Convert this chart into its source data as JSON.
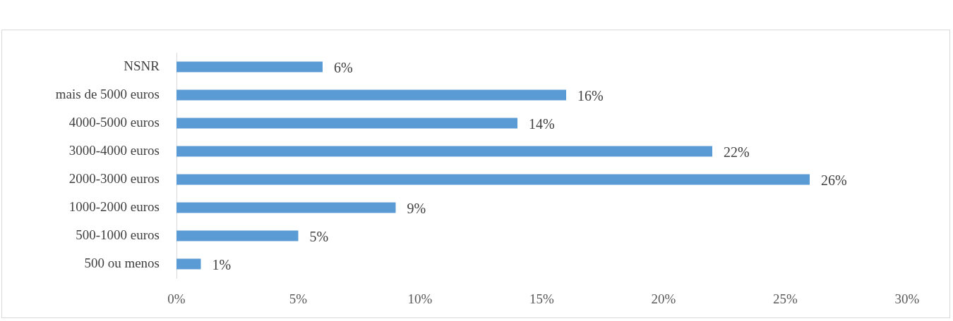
{
  "chart_data": {
    "type": "bar",
    "orientation": "horizontal",
    "categories": [
      "NSNR",
      "mais de 5000 euros",
      "4000-5000 euros",
      "3000-4000 euros",
      "2000-3000 euros",
      "1000-2000 euros",
      "500-1000 euros",
      "500 ou menos"
    ],
    "values": [
      6,
      16,
      14,
      22,
      26,
      9,
      5,
      1
    ],
    "value_labels": [
      "6%",
      "16%",
      "14%",
      "22%",
      "26%",
      "9%",
      "5%",
      "1%"
    ],
    "color": "#5b9bd5",
    "xlim": [
      0,
      30
    ],
    "xticks": [
      {
        "value": 0,
        "label": "0%"
      },
      {
        "value": 5,
        "label": "5%"
      },
      {
        "value": 10,
        "label": "10%"
      },
      {
        "value": 15,
        "label": "15%"
      },
      {
        "value": 20,
        "label": "20%"
      },
      {
        "value": 25,
        "label": "25%"
      },
      {
        "value": 30,
        "label": "30%"
      }
    ],
    "grid": false,
    "legend": false
  }
}
